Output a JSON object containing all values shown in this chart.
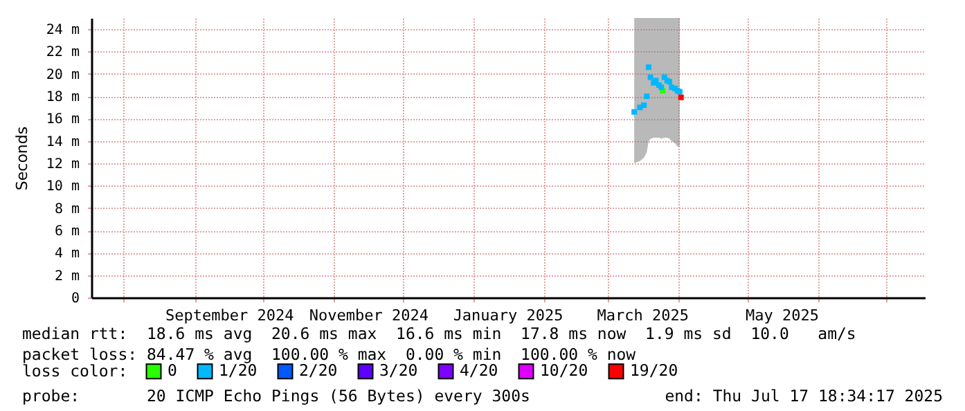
{
  "chart_data": {
    "type": "scatter",
    "ylabel": "Seconds",
    "legend_title": "loss color:",
    "legend": "bottom",
    "grid": true,
    "marker": "square",
    "xlim": [
      "2024-07-17T18:34",
      "2025-07-17T18:34"
    ],
    "xticks": [
      {
        "value": "2024-08-01",
        "label": null
      },
      {
        "value": "2024-09-01",
        "label": null
      },
      {
        "value": "2024-09-16",
        "label": "September 2024"
      },
      {
        "value": "2024-10-01",
        "label": null
      },
      {
        "value": "2024-11-01",
        "label": null
      },
      {
        "value": "2024-11-16",
        "label": "November 2024"
      },
      {
        "value": "2024-12-01",
        "label": null
      },
      {
        "value": "2025-01-01",
        "label": null
      },
      {
        "value": "2025-01-16",
        "label": "January 2025"
      },
      {
        "value": "2025-02-01",
        "label": null
      },
      {
        "value": "2025-03-01",
        "label": null
      },
      {
        "value": "2025-03-16",
        "label": "March 2025"
      },
      {
        "value": "2025-04-01",
        "label": null
      },
      {
        "value": "2025-05-01",
        "label": null
      },
      {
        "value": "2025-05-16",
        "label": "May 2025"
      },
      {
        "value": "2025-06-01",
        "label": null
      },
      {
        "value": "2025-07-01",
        "label": null
      }
    ],
    "ylim": [
      0,
      25
    ],
    "yticks": [
      0,
      {
        "value": 2,
        "label": "2 m"
      },
      {
        "value": 4,
        "label": "4 m"
      },
      {
        "value": 6,
        "label": "6 m"
      },
      {
        "value": 8,
        "label": "8 m"
      },
      {
        "value": 10,
        "label": "10 m"
      },
      {
        "value": 12,
        "label": "12 m"
      },
      {
        "value": 14,
        "label": "14 m"
      },
      {
        "value": 16,
        "label": "16 m"
      },
      {
        "value": 18,
        "label": "18 m"
      },
      {
        "value": 20,
        "label": "20 m"
      },
      {
        "value": 22,
        "label": "22 m"
      },
      {
        "value": 24,
        "label": "24 m"
      }
    ],
    "series": [
      {
        "name": "0",
        "color": "#26ff00",
        "x": [
          "2025-03-24T22:00"
        ],
        "values": [
          18.5
        ]
      },
      {
        "name": "1/20",
        "color": "#00b8ff",
        "x": [
          "2025-03-12T12:00",
          "2025-03-15T00:00",
          "2025-03-16T18:00",
          "2025-03-18T00:00",
          "2025-03-18T20:00",
          "2025-03-19T15:00",
          "2025-03-21T00:00",
          "2025-03-22T00:00",
          "2025-03-23T08:00",
          "2025-03-24T08:00",
          "2025-03-25T17:00",
          "2025-03-26T22:00",
          "2025-03-27T22:00",
          "2025-03-28T22:00",
          "2025-03-30T08:00",
          "2025-03-31T10:00",
          "2025-04-01T10:00"
        ],
        "values": [
          16.6,
          17.0,
          17.2,
          18.0,
          20.6,
          19.7,
          19.2,
          19.4,
          19.0,
          18.8,
          19.7,
          19.4,
          19.3,
          18.8,
          18.7,
          18.5,
          18.4
        ],
        "lower": [
          12.0,
          12.2,
          12.5,
          13.0,
          14.0,
          14.2,
          14.3,
          14.3,
          14.3,
          14.2,
          14.3,
          14.3,
          14.2,
          14.0,
          13.8,
          13.5,
          13.5
        ],
        "upper": [
          25,
          25,
          25,
          25,
          25,
          25,
          25,
          25,
          25,
          25,
          25,
          25,
          25,
          25,
          25,
          25,
          25
        ]
      },
      {
        "name": "2/20",
        "color": "#0059ff"
      },
      {
        "name": "3/20",
        "color": "#5e00ff"
      },
      {
        "name": "4/20",
        "color": "#7e00ff"
      },
      {
        "name": "10/20",
        "color": "#dd00ff"
      },
      {
        "name": "19/20",
        "color": "#ff0000",
        "x": [
          "2025-04-02T00:00"
        ],
        "values": [
          17.9
        ]
      }
    ],
    "annotations": [
      "median rtt:  18.6 ms avg  20.6 ms max  16.6 ms min  17.8 ms now  1.9 ms sd  10.0   am/s",
      "packet loss: 84.47 % avg  100.00 % max  0.00 % min  100.00 % now",
      "probe:       20 ICMP Echo Pings (56 Bytes) every 300s",
      "end: Thu Jul 17 18:34:17 2025"
    ]
  }
}
